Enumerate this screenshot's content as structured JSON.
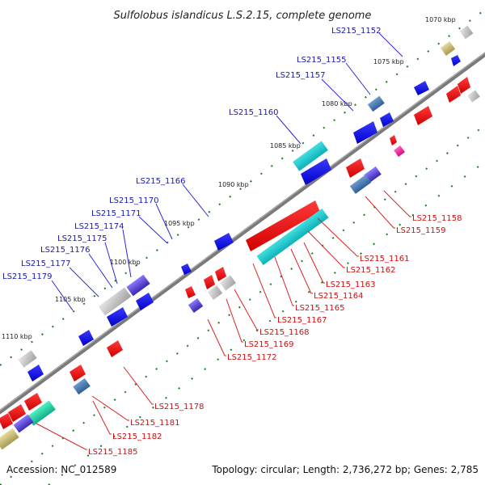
{
  "title": "Sulfolobus islandicus L.S.2.15, complete genome",
  "footer": {
    "accession": "Accession: NC_012589",
    "topology": "Topology: circular; Length: 2,736,272 bp; Genes: 2,785"
  },
  "colors": {
    "backbone": "#808080",
    "forward_label": "#1a1aa8",
    "reverse_label": "#cc1111",
    "tick": "#1e7a1e"
  },
  "kbp_ticks": [
    "1070 kbp",
    "1075 kbp",
    "1080 kbp",
    "1085 kbp",
    "1090 kbp",
    "1095 kbp",
    "1100 kbp",
    "1105 kbp",
    "1110 kbp"
  ],
  "forward_labels": [
    "LS215_1152",
    "LS215_1155",
    "LS215_1157",
    "LS215_1160",
    "LS215_1166",
    "LS215_1170",
    "LS215_1171",
    "LS215_1174",
    "LS215_1175",
    "LS215_1176",
    "LS215_1177",
    "LS215_1179"
  ],
  "reverse_labels": [
    "LS215_1158",
    "LS215_1159",
    "LS215_1161",
    "LS215_1162",
    "LS215_1163",
    "LS215_1164",
    "LS215_1165",
    "LS215_1167",
    "LS215_1168",
    "LS215_1169",
    "LS215_1172",
    "LS215_1178",
    "LS215_1181",
    "LS215_1182",
    "LS215_1185"
  ]
}
